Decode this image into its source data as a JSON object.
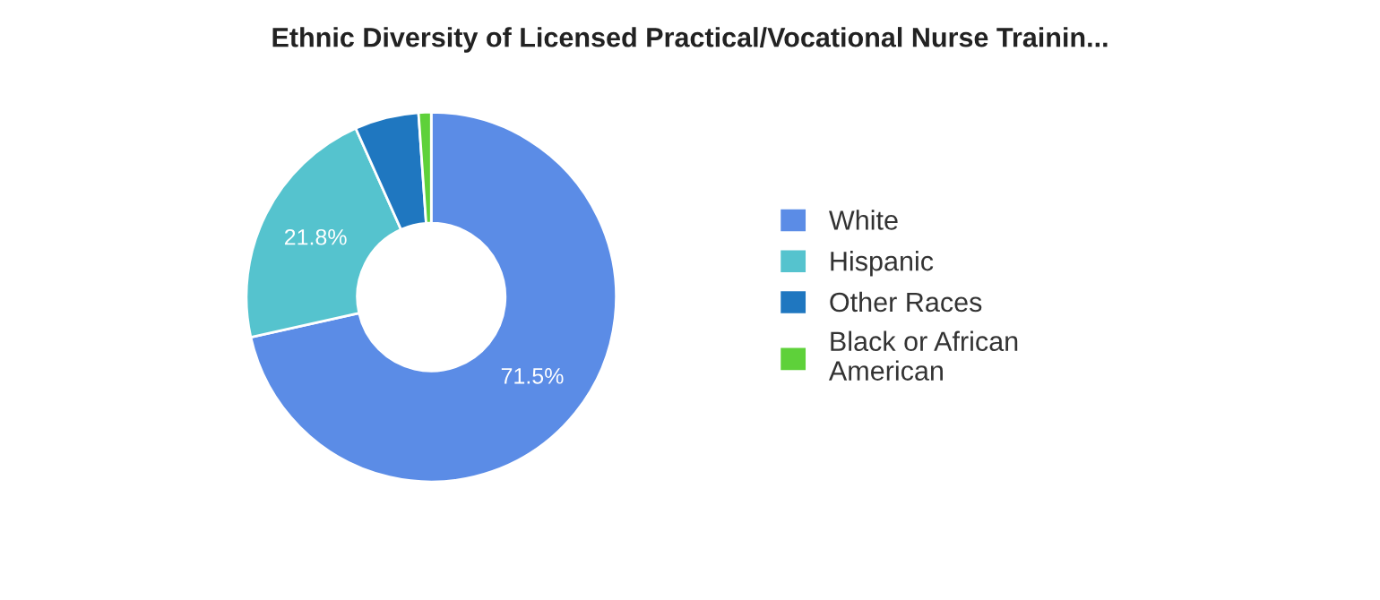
{
  "chart_data": {
    "type": "donut",
    "title": "Ethnic Diversity of Licensed Practical/Vocational Nurse Trainin...",
    "categories": [
      "White",
      "Hispanic",
      "Other Races",
      "Black or African\nAmerican"
    ],
    "values": [
      71.5,
      21.8,
      5.6,
      1.1
    ],
    "colors": [
      "#5b8ce6",
      "#55c3ce",
      "#1f77c0",
      "#5ed13a"
    ],
    "value_labels": [
      "71.5%",
      "21.8%",
      null,
      null
    ],
    "legend": "right"
  }
}
